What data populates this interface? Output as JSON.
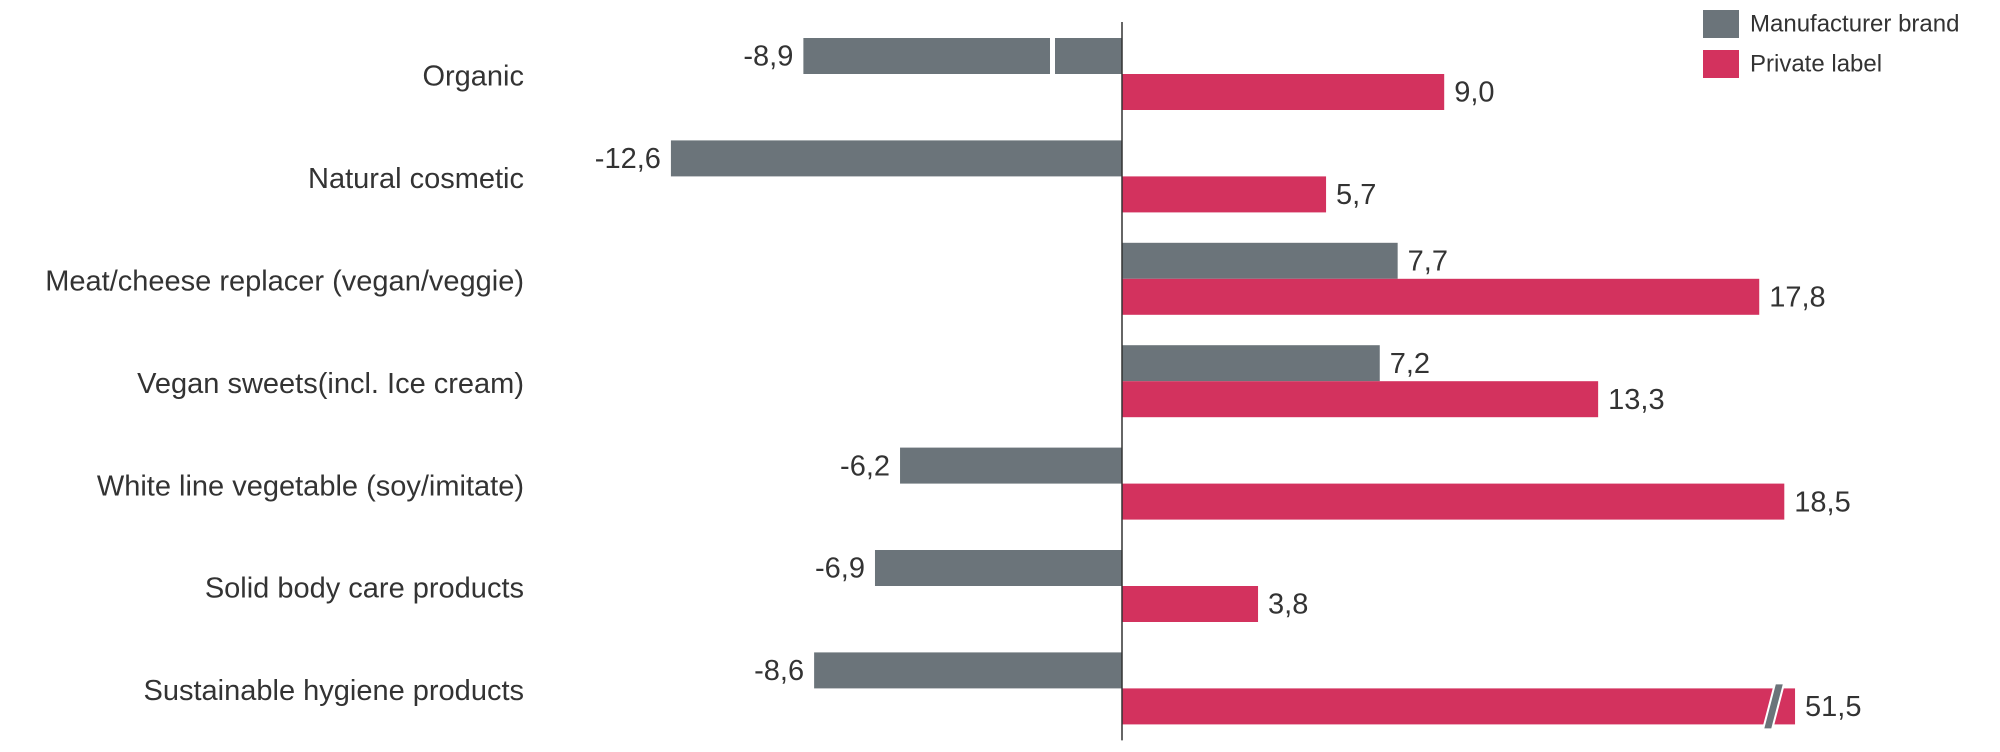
{
  "chart_data": {
    "type": "bar",
    "orientation": "horizontal",
    "categories": [
      "Organic",
      "Natural cosmetic",
      "Meat/cheese replacer (vegan/veggie)",
      "Vegan sweets(incl. Ice cream)",
      "White line vegetable (soy/imitate)",
      "Solid body care products",
      "Sustainable hygiene products"
    ],
    "series": [
      {
        "name": "Manufacturer brand",
        "color": "#6b747a",
        "values": [
          -8.9,
          -12.6,
          7.7,
          7.2,
          -6.2,
          -6.9,
          -8.6
        ],
        "labels": [
          "-8,9",
          "-12,6",
          "7,7",
          "7,2",
          "-6,2",
          "-6,9",
          "-8,6"
        ]
      },
      {
        "name": "Private label",
        "color": "#d3325e",
        "values": [
          9.0,
          5.7,
          17.8,
          13.3,
          18.5,
          3.8,
          51.5
        ],
        "labels": [
          "9,0",
          "5,7",
          "17,8",
          "13,3",
          "18,5",
          "3,8",
          "51,5"
        ]
      }
    ],
    "axis_break": {
      "series": "Private label",
      "category": "Sustainable hygiene products",
      "display_cap": 18.8
    },
    "xlabel": "",
    "ylabel": "",
    "title": "",
    "grid": false,
    "legend": "top-right"
  }
}
